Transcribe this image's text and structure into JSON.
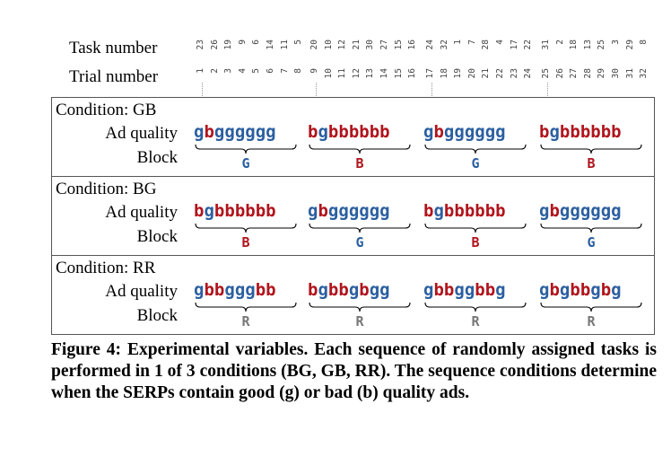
{
  "header": {
    "task_label": "Task number",
    "trial_label": "Trial number",
    "task_numbers": [
      "23",
      "26",
      "19",
      "9",
      "6",
      "14",
      "11",
      "5",
      "20",
      "10",
      "12",
      "21",
      "30",
      "27",
      "15",
      "16",
      "24",
      "32",
      "1",
      "7",
      "28",
      "4",
      "17",
      "22",
      "31",
      "2",
      "18",
      "13",
      "25",
      "3",
      "29",
      "8"
    ],
    "trial_numbers": [
      "1",
      "2",
      "3",
      "4",
      "5",
      "6",
      "7",
      "8",
      "9",
      "10",
      "11",
      "12",
      "13",
      "14",
      "15",
      "16",
      "17",
      "18",
      "19",
      "20",
      "21",
      "22",
      "23",
      "24",
      "25",
      "26",
      "27",
      "28",
      "29",
      "30",
      "31",
      "32"
    ]
  },
  "labels": {
    "ad_quality": "Ad quality",
    "block": "Block"
  },
  "conditions": [
    {
      "name": "Condition: GB",
      "sequences": [
        "gbgggggg",
        "bgbbbbbb",
        "gbgggggg",
        "bgbbbbbb"
      ],
      "blocks": [
        "G",
        "B",
        "G",
        "B"
      ]
    },
    {
      "name": "Condition: BG",
      "sequences": [
        "bgbbbbbb",
        "gbgggggg",
        "bgbbbbbb",
        "gbgggggg"
      ],
      "blocks": [
        "B",
        "G",
        "B",
        "G"
      ]
    },
    {
      "name": "Condition: RR",
      "sequences": [
        "gbbgggbb",
        "bgbbgbgg",
        "gbbggbbg",
        "gbgbbgbg"
      ],
      "blocks": [
        "R",
        "R",
        "R",
        "R"
      ]
    }
  ],
  "colors": {
    "good": "#2b5fa0",
    "bad": "#b0141c",
    "random": "#777777"
  },
  "caption": "Figure 4: Experimental variables. Each sequence of randomly assigned tasks is performed in 1 of 3 conditions (BG, GB, RR). The sequence conditions determine when the SERPs contain good (g) or bad (b) quality ads."
}
